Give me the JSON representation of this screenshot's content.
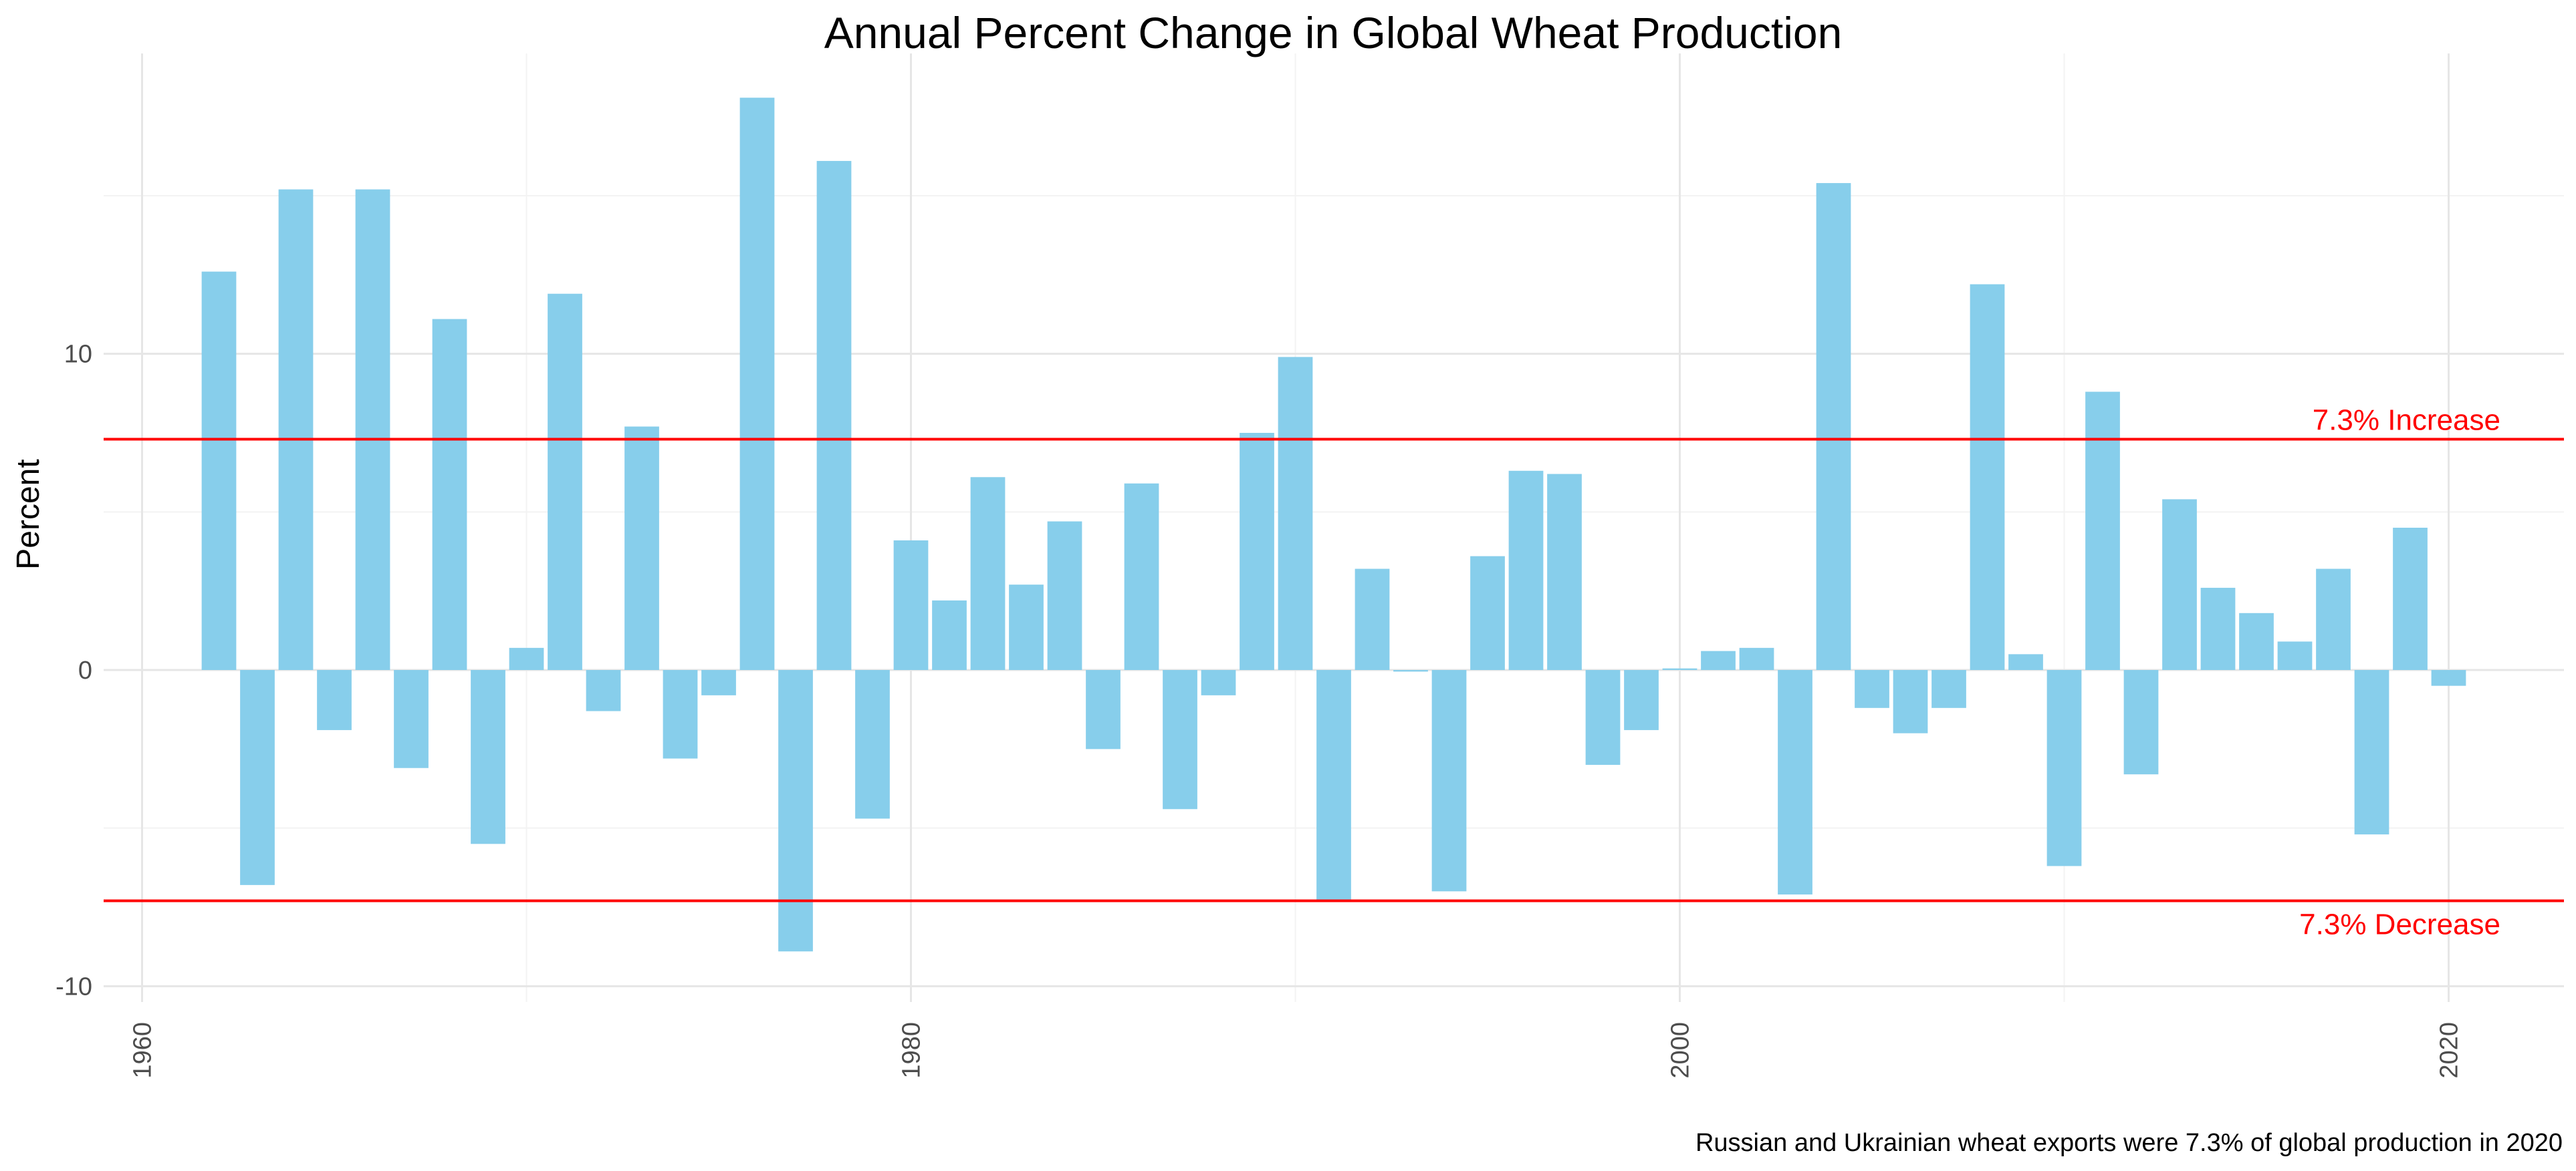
{
  "chart_data": {
    "type": "bar",
    "title": "Annual Percent Change in Global Wheat Production",
    "xlabel": "",
    "ylabel": "Percent",
    "caption": "Russian and Ukrainian wheat exports were 7.3% of global production in 2020",
    "x": [
      1962,
      1963,
      1964,
      1965,
      1966,
      1967,
      1968,
      1969,
      1970,
      1971,
      1972,
      1973,
      1974,
      1975,
      1976,
      1977,
      1978,
      1979,
      1980,
      1981,
      1982,
      1983,
      1984,
      1985,
      1986,
      1987,
      1988,
      1989,
      1990,
      1991,
      1992,
      1993,
      1994,
      1995,
      1996,
      1997,
      1998,
      1999,
      2000,
      2001,
      2002,
      2003,
      2004,
      2005,
      2006,
      2007,
      2008,
      2009,
      2010,
      2011,
      2012,
      2013,
      2014,
      2015,
      2016,
      2017,
      2018,
      2019,
      2020
    ],
    "values": [
      12.6,
      -6.8,
      15.2,
      -1.9,
      15.2,
      -3.1,
      11.1,
      -5.5,
      0.7,
      11.9,
      -1.3,
      7.7,
      -2.8,
      -0.8,
      18.1,
      -8.9,
      16.1,
      -4.7,
      4.1,
      2.2,
      6.1,
      2.7,
      4.7,
      -2.5,
      5.9,
      -4.4,
      -0.8,
      7.5,
      9.9,
      -7.3,
      3.2,
      -0.05,
      -7.0,
      3.6,
      6.3,
      6.2,
      -3.0,
      -1.9,
      0.05,
      0.6,
      0.7,
      -7.1,
      15.4,
      -1.2,
      -2.0,
      -1.2,
      12.2,
      0.5,
      -6.2,
      8.8,
      -3.3,
      5.4,
      2.6,
      1.8,
      0.9,
      3.2,
      -5.2,
      4.5,
      -0.5
    ],
    "bar_color": "#87CEEB",
    "reference_lines": [
      {
        "value": 7.3,
        "label": "7.3% Increase",
        "color": "#FF0000"
      },
      {
        "value": -7.3,
        "label": "7.3% Decrease",
        "color": "#FF0000"
      }
    ],
    "xlim": [
      1959,
      2023
    ],
    "ylim": [
      -10.5,
      19.5
    ],
    "x_ticks": [
      "1960",
      "1980",
      "2000",
      "2020"
    ],
    "y_ticks": [
      "-10",
      "0",
      "10"
    ],
    "grid": true
  }
}
